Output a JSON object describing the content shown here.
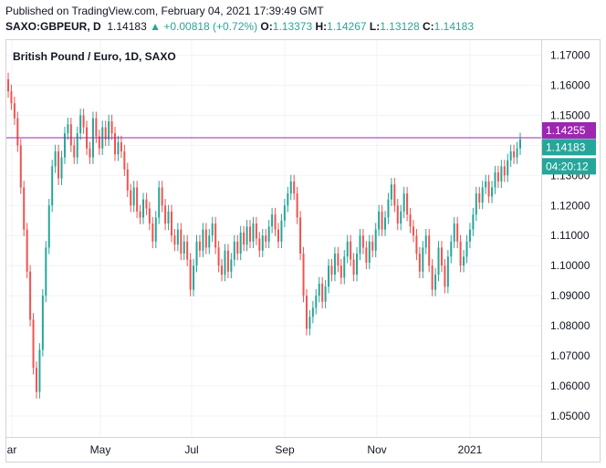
{
  "header": {
    "published": "Published on TradingView.com, February 04, 2021 17:39:49 GMT",
    "symbol": "SAXO:GBPEUR, D",
    "last": "1.14183",
    "change": "+0.00818 (+0.72%)",
    "o_label": "O:",
    "o_value": "1.13373",
    "h_label": "H:",
    "h_value": "1.14267",
    "l_label": "L:",
    "l_value": "1.13128",
    "c_label": "C:",
    "c_value": "1.14183"
  },
  "colors": {
    "up": "#26a69a",
    "down": "#ef5350",
    "hline": "#9c27b0",
    "grid": "#f0f3fa",
    "text": "#131722"
  },
  "chart_data": {
    "type": "candlestick",
    "title": "British Pound / Euro, 1D, SAXO",
    "ylim": [
      1.043,
      1.175
    ],
    "y_ticks": [
      "1.17000",
      "1.16000",
      "1.15000",
      "1.14000",
      "1.13000",
      "1.12000",
      "1.11000",
      "1.10000",
      "1.09000",
      "1.08000",
      "1.07000",
      "1.06000",
      "1.05000"
    ],
    "x_ticks": [
      "ar",
      "May",
      "Jul",
      "Sep",
      "Nov",
      "2021"
    ],
    "price_labels": [
      {
        "text": "1.14255",
        "value": 1.14255,
        "color": "#9c27b0"
      },
      {
        "text": "1.14183",
        "value": 1.14183,
        "color": "#26a69a"
      },
      {
        "text": "04:20:12",
        "color": "#26a69a"
      }
    ],
    "horizontal_line": 1.14255,
    "closes": [
      1.158,
      1.154,
      1.149,
      1.14,
      1.126,
      1.112,
      1.098,
      1.082,
      1.066,
      1.058,
      1.072,
      1.09,
      1.106,
      1.12,
      1.133,
      1.138,
      1.129,
      1.136,
      1.144,
      1.147,
      1.14,
      1.136,
      1.144,
      1.15,
      1.146,
      1.139,
      1.136,
      1.149,
      1.143,
      1.139,
      1.146,
      1.142,
      1.148,
      1.144,
      1.137,
      1.141,
      1.138,
      1.132,
      1.125,
      1.12,
      1.126,
      1.118,
      1.116,
      1.122,
      1.119,
      1.114,
      1.108,
      1.116,
      1.126,
      1.12,
      1.114,
      1.118,
      1.11,
      1.107,
      1.112,
      1.104,
      1.108,
      1.102,
      1.092,
      1.1,
      1.108,
      1.105,
      1.112,
      1.106,
      1.11,
      1.114,
      1.106,
      1.1,
      1.097,
      1.105,
      1.098,
      1.102,
      1.108,
      1.104,
      1.111,
      1.107,
      1.113,
      1.108,
      1.114,
      1.109,
      1.105,
      1.11,
      1.108,
      1.113,
      1.117,
      1.112,
      1.108,
      1.115,
      1.12,
      1.124,
      1.128,
      1.124,
      1.116,
      1.104,
      1.09,
      1.079,
      1.083,
      1.086,
      1.09,
      1.094,
      1.088,
      1.093,
      1.1,
      1.097,
      1.104,
      1.1,
      1.096,
      1.103,
      1.108,
      1.102,
      1.097,
      1.104,
      1.11,
      1.106,
      1.101,
      1.108,
      1.105,
      1.112,
      1.118,
      1.112,
      1.116,
      1.122,
      1.127,
      1.12,
      1.114,
      1.118,
      1.124,
      1.117,
      1.113,
      1.11,
      1.104,
      1.098,
      1.106,
      1.11,
      1.1,
      1.092,
      1.097,
      1.106,
      1.1,
      1.093,
      1.103,
      1.108,
      1.114,
      1.108,
      1.1,
      1.103,
      1.108,
      1.112,
      1.117,
      1.124,
      1.121,
      1.126,
      1.128,
      1.123,
      1.126,
      1.131,
      1.128,
      1.133,
      1.13,
      1.135,
      1.138,
      1.136,
      1.139,
      1.142
    ]
  }
}
